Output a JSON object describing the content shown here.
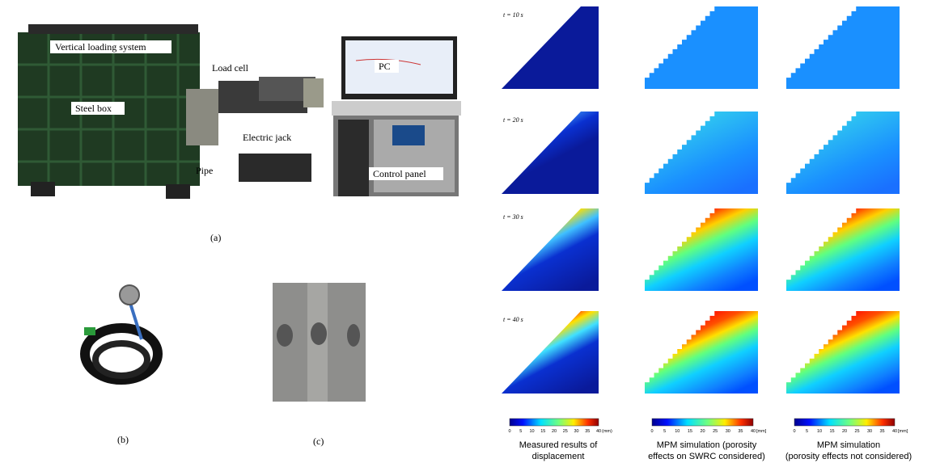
{
  "photo_labels": {
    "vertical_loading_system": "Vertical loading system",
    "load_cell": "Load cell",
    "pc": "PC",
    "steel_box": "Steel box",
    "electric_jack": "Electric jack",
    "pipe": "Pipe",
    "control_panel": "Control panel"
  },
  "panel_labels": {
    "a": "(a)",
    "b": "(b)",
    "c": "(c)"
  },
  "time_labels": [
    "t = 10 s",
    "t = 20 s",
    "t = 30 s",
    "t = 40 s"
  ],
  "colorbars": [
    {
      "ticks": [
        0,
        5,
        10,
        15,
        20,
        25,
        30,
        35,
        40
      ],
      "unit": "(mm)",
      "caption": [
        "Measured results of",
        "displacement"
      ]
    },
    {
      "ticks": [
        0,
        5,
        10,
        15,
        20,
        25,
        30,
        35,
        40
      ],
      "unit": "[mm]",
      "caption": [
        "MPM simulation (porosity",
        "effects on SWRC considered)"
      ]
    },
    {
      "ticks": [
        0,
        5,
        10,
        15,
        20,
        25,
        30,
        35,
        40
      ],
      "unit": "[mm]",
      "caption": [
        "MPM simulation",
        "(porosity effects not considered)"
      ]
    }
  ]
}
